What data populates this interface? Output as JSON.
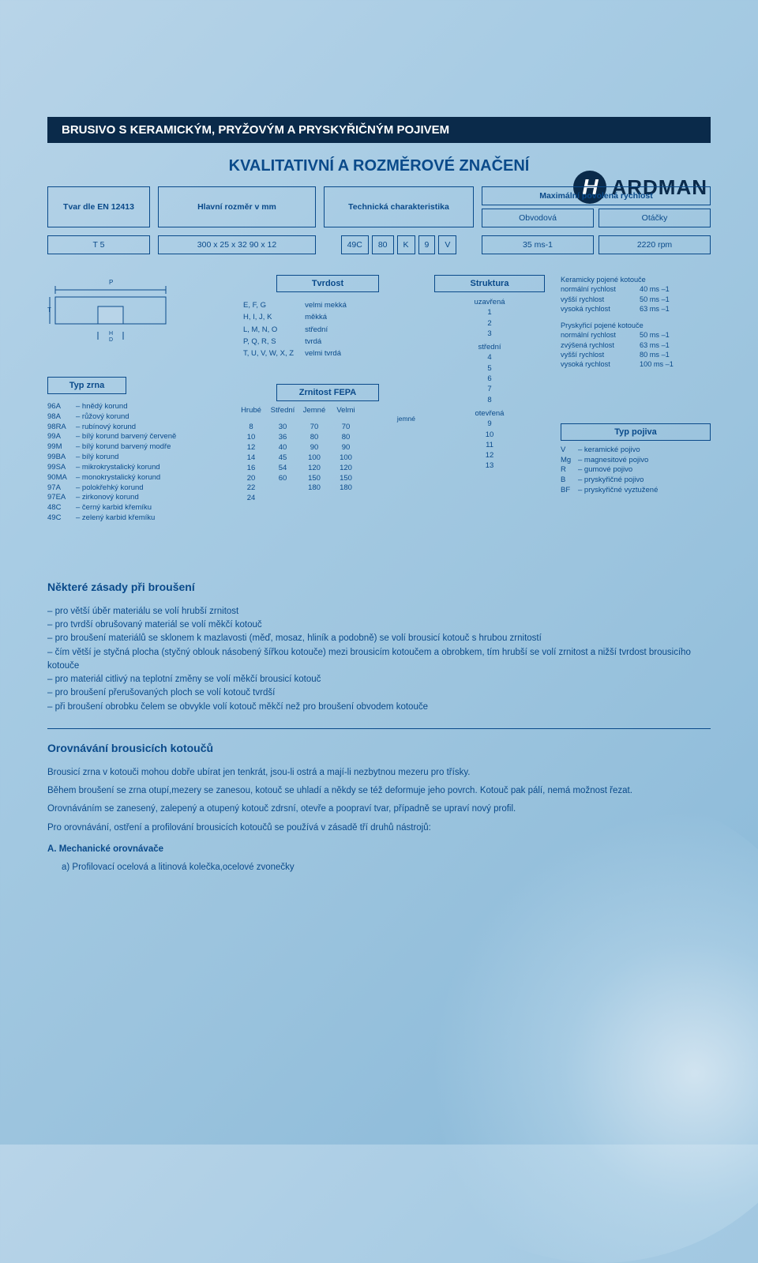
{
  "brand": {
    "initial": "H",
    "name": "ARDMAN"
  },
  "bar_title": "BRUSIVO S KERAMICKÝM, PRYŽOVÝM A  PRYSKYŘIČNÝM POJIVEM",
  "main_title": "KVALITATIVNÍ A ROZMĚROVÉ ZNAČENÍ",
  "header": {
    "col1": "Tvar dle EN 12413",
    "col2": "Hlavní rozměr v mm",
    "col3": "Technická charakteristika",
    "col4": "Maximální povolená rychlost",
    "col4a": "Obvodová",
    "col4b": "Otáčky"
  },
  "values": {
    "v1": "T 5",
    "v2": "300 x 25 x 32 90 x 12",
    "c1": "49C",
    "c2": "80",
    "c3": "K",
    "c4": "9",
    "c5": "V",
    "r1": "35 ms-1",
    "r2": "2220 rpm"
  },
  "diagram_labels": {
    "p": "P",
    "t": "T",
    "h": "H",
    "d": "D"
  },
  "tvrdost": {
    "label": "Tvrdost",
    "rows": [
      [
        "E, F, G",
        "velmi mekká"
      ],
      [
        "H, I, J, K",
        "měkká"
      ],
      [
        "L, M, N, O",
        "střední"
      ],
      [
        "P, Q, R, S",
        "tvrdá"
      ],
      [
        "T, U, V, W, X, Z",
        "velmi tvrdá"
      ]
    ]
  },
  "struktura": {
    "label": "Struktura",
    "g1": "uzavřená",
    "g1v": [
      "1",
      "2",
      "3"
    ],
    "g2": "střední",
    "g2v": [
      "4",
      "5",
      "6",
      "7",
      "8"
    ],
    "g3": "otevřená",
    "g3v": [
      "9",
      "10",
      "11",
      "12",
      "13"
    ]
  },
  "typ_zrna_label": "Typ zrna",
  "grains": [
    [
      "96A",
      "hnědý korund"
    ],
    [
      "98A",
      "růžový korund"
    ],
    [
      "98RA",
      "rubínový korund"
    ],
    [
      "99A",
      "bílý korund barvený červeně"
    ],
    [
      "99M",
      "bílý korund barvený modře"
    ],
    [
      "99BA",
      "bílý korund"
    ],
    [
      "99SA",
      "mikrokrystalický korund"
    ],
    [
      "90MA",
      "monokrystalický korund"
    ],
    [
      "97A",
      "polokřehký korund"
    ],
    [
      "97EA",
      "zirkonový korund"
    ],
    [
      "48C",
      "černý karbid křemíku"
    ],
    [
      "49C",
      "zelený karbid křemíku"
    ]
  ],
  "grit": {
    "label": "Zrnitost FEPA",
    "headers": [
      "Hrubé",
      "Střední",
      "Jemné",
      "Velmi"
    ],
    "header2": "jemné",
    "cols": [
      [
        "8",
        "10",
        "12",
        "14",
        "16",
        "20",
        "22",
        "24"
      ],
      [
        "30",
        "36",
        "40",
        "45",
        "54",
        "60",
        "",
        ""
      ],
      [
        "70",
        "80",
        "90",
        "100",
        "120",
        "150",
        "180",
        ""
      ],
      [
        "70",
        "80",
        "90",
        "100",
        "120",
        "150",
        "180",
        ""
      ]
    ]
  },
  "right": {
    "ker_title": "Keramicky pojené kotouče",
    "ker": [
      [
        "normální rychlost",
        "40 ms –1"
      ],
      [
        "vyšší rychlost",
        "50 ms –1"
      ],
      [
        "vysoká rychlost",
        "63 ms –1"
      ]
    ],
    "pry_title": "Pryskyřicí pojené kotouče",
    "pry": [
      [
        "normální rychlost",
        "50 ms –1"
      ],
      [
        "zvýšená rychlost",
        "63 ms –1"
      ],
      [
        "vyšší rychlost",
        "80 ms –1"
      ],
      [
        "vysoká rychlost",
        "100 ms –1"
      ]
    ]
  },
  "typ_pojiva_label": "Typ pojiva",
  "pojiva": [
    [
      "V",
      "keramické pojivo"
    ],
    [
      "Mg",
      "magnesitové pojivo"
    ],
    [
      "R",
      "gumové pojivo"
    ],
    [
      "B",
      "pryskyřičné pojivo"
    ],
    [
      "BF",
      "pryskyřičné vyztužené"
    ]
  ],
  "zasady_title": "Některé zásady při broušení",
  "zasady": [
    "pro větší úběr materiálu se volí hrubší zrnitost",
    "pro tvrdší obrušovaný materiál se volí měkčí kotouč",
    "pro broušení materiálů se sklonem k mazlavosti (měď, mosaz, hliník a podobně) se volí brousicí kotouč s hrubou zrnitostí",
    "čím větší je styčná plocha (styčný oblouk násobený šířkou kotouče) mezi brousicím kotoučem a obrobkem, tím hrubší se volí  zrnitost a nižší tvrdost brousicího kotouče",
    "pro materiál citlivý na teplotní změny se volí měkčí brousicí kotouč",
    "pro broušení přerušovaných ploch se volí kotouč tvrdší",
    "při broušení obrobku čelem se obvykle volí kotouč měkčí než pro broušení obvodem kotouče"
  ],
  "orov_title": "Orovnávání brousicích kotoučů",
  "orov_p1": "Brousicí zrna v kotouči mohou dobře ubírat jen tenkrát, jsou-li ostrá a mají-li nezbytnou mezeru pro třísky.",
  "orov_p2": "Během broušení se zrna otupí,mezery se zanesou, kotouč se uhladí a někdy se též deformuje jeho povrch.  Kotouč pak pálí, nemá možnost řezat.",
  "orov_p3": "Orovnáváním se zanesený, zalepený a otupený kotouč zdrsní, otevře a poopraví tvar, případně se upraví nový profil.",
  "orov_p4": "Pro orovnávání, ostření a profilování brousicích kotoučů se používá v zásadě tří druhů nástrojů:",
  "mech_title": "A.  Mechanické orovnávače",
  "mech_a": "a) Profilovací ocelová a litinová kolečka,ocelové zvonečky",
  "colors": {
    "navy": "#0a2a4a",
    "blue": "#0a4a8a",
    "bg1": "#b8d4e8"
  }
}
